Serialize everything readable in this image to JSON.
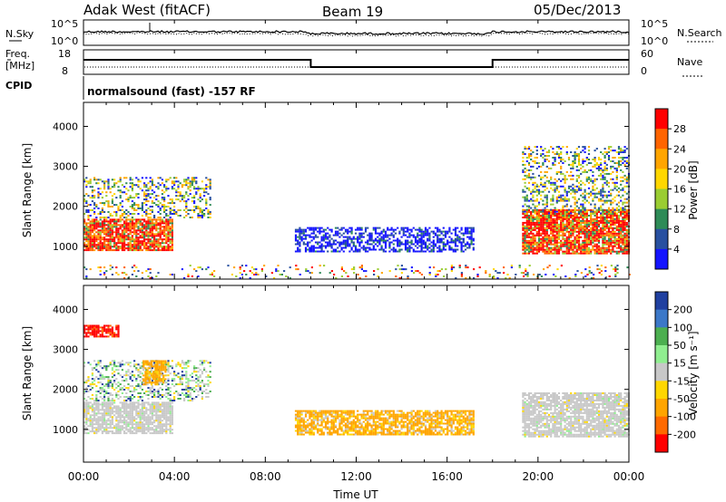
{
  "header": {
    "title": "Adak West (fitACF)",
    "beam": "Beam 19",
    "date": "05/Dec/2013"
  },
  "strip_panels": {
    "noise": {
      "left_label": "N.Sky",
      "right_label": "N.Search",
      "left_ticks": [
        "10^5",
        "10^0"
      ],
      "right_ticks": [
        "10^5",
        "10^0"
      ]
    },
    "frequency": {
      "left_label_1": "Freq.",
      "left_label_2": "[MHz]",
      "right_label": "Nave",
      "left_ticks": [
        "18",
        "8"
      ],
      "right_ticks": [
        "60",
        "0"
      ],
      "freq_steps": [
        {
          "start_hour": 0,
          "end_hour": 10,
          "level": "high"
        },
        {
          "start_hour": 10,
          "end_hour": 18,
          "level": "low"
        },
        {
          "start_hour": 18,
          "end_hour": 24,
          "level": "high"
        }
      ]
    },
    "cpid": {
      "left_label": "CPID",
      "program_text": "normalsound (fast) -157 RF"
    }
  },
  "chart_data": [
    {
      "type": "heatmap",
      "name": "power",
      "xlabel": "Time UT",
      "ylabel": "Slant Range [km]",
      "x_ticks": [
        "00:00",
        "04:00",
        "08:00",
        "12:00",
        "16:00",
        "20:00",
        "00:00"
      ],
      "xlim_hours": [
        0,
        24
      ],
      "y_ticks": [
        1000,
        2000,
        3000,
        4000
      ],
      "ylim_km": [
        180,
        4600
      ],
      "colorbar": {
        "label": "Power [dB]",
        "ticks": [
          4,
          8,
          12,
          16,
          20,
          24,
          28
        ],
        "colors": [
          "#1414ff",
          "#2850a0",
          "#2e8b57",
          "#9acd32",
          "#ffd700",
          "#ffa500",
          "#ff6400",
          "#ff0000"
        ]
      },
      "regions": [
        {
          "t0": 0.0,
          "t1": 3.9,
          "r0": 880,
          "r1": 1650,
          "intensity": "high"
        },
        {
          "t0": 0.0,
          "t1": 5.6,
          "r0": 1700,
          "r1": 2700,
          "intensity": "mixed"
        },
        {
          "t0": 9.3,
          "t1": 17.2,
          "r0": 850,
          "r1": 1450,
          "intensity": "low"
        },
        {
          "t0": 19.3,
          "t1": 24.0,
          "r0": 800,
          "r1": 1900,
          "intensity": "high"
        },
        {
          "t0": 19.3,
          "t1": 24.0,
          "r0": 1800,
          "r1": 3500,
          "intensity": "mixed"
        },
        {
          "t0": 0.0,
          "t1": 24.0,
          "r0": 180,
          "r1": 500,
          "intensity": "sparse"
        }
      ]
    },
    {
      "type": "heatmap",
      "name": "velocity",
      "xlabel": "Time UT",
      "ylabel": "Slant Range [km]",
      "x_ticks": [
        "00:00",
        "04:00",
        "08:00",
        "12:00",
        "16:00",
        "20:00",
        "00:00"
      ],
      "xlim_hours": [
        0,
        24
      ],
      "y_ticks": [
        1000,
        2000,
        3000,
        4000
      ],
      "ylim_km": [
        180,
        4600
      ],
      "colorbar": {
        "label": "Velocity [m s⁻¹]",
        "ticks": [
          200,
          100,
          50,
          15,
          -15,
          -50,
          -100,
          -200
        ],
        "colors": [
          "#2040a0",
          "#3c78c8",
          "#4caf50",
          "#90ee90",
          "#c8c8c8",
          "#ffd700",
          "#ffa500",
          "#ff6a00",
          "#ff0000"
        ]
      },
      "regions": [
        {
          "t0": 0.0,
          "t1": 3.9,
          "r0": 880,
          "r1": 1650,
          "value": "near-zero"
        },
        {
          "t0": 0.0,
          "t1": 5.6,
          "r0": 1700,
          "r1": 2700,
          "value": "mixed"
        },
        {
          "t0": 2.6,
          "t1": 3.6,
          "r0": 2100,
          "r1": 2700,
          "value": "negative"
        },
        {
          "t0": 9.3,
          "t1": 17.2,
          "r0": 850,
          "r1": 1450,
          "value": "negative"
        },
        {
          "t0": 19.3,
          "t1": 24.0,
          "r0": 800,
          "r1": 1900,
          "value": "near-zero"
        },
        {
          "t0": 0.0,
          "t1": 1.5,
          "r0": 3300,
          "r1": 3600,
          "value": "strong-negative"
        }
      ]
    }
  ]
}
